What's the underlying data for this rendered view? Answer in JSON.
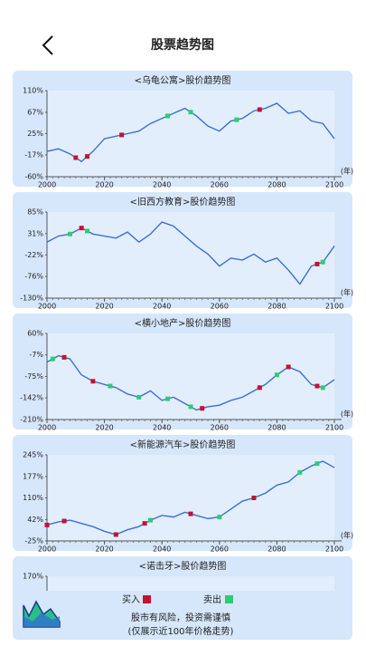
{
  "header": {
    "title": "股票趋势图"
  },
  "chart_data": [
    {
      "type": "line",
      "title": "<乌龟公寓>股价趋势图",
      "xlabel": "(年)",
      "x": [
        2000,
        2004,
        2008,
        2012,
        2016,
        2020,
        2024,
        2028,
        2032,
        2036,
        2040,
        2044,
        2048,
        2052,
        2056,
        2060,
        2064,
        2068,
        2072,
        2076,
        2080,
        2084,
        2088,
        2092,
        2096,
        2100
      ],
      "values": [
        -10,
        -5,
        -15,
        -30,
        -10,
        15,
        20,
        25,
        30,
        45,
        55,
        65,
        75,
        60,
        40,
        30,
        50,
        55,
        70,
        75,
        85,
        65,
        70,
        50,
        45,
        15
      ],
      "xlim": [
        2000,
        2100
      ],
      "xticks": [
        2000,
        2020,
        2040,
        2060,
        2080,
        2100
      ],
      "ylim": [
        -60,
        110
      ],
      "yticks": [
        {
          "value": 110,
          "label": "110%"
        },
        {
          "value": 67,
          "label": "67%"
        },
        {
          "value": 25,
          "label": "25%"
        },
        {
          "value": -17,
          "label": "-17%"
        },
        {
          "value": -60,
          "label": "-60%"
        }
      ],
      "buys": [
        2010,
        2014,
        2026,
        2074
      ],
      "sells": [
        2042,
        2050,
        2066
      ]
    },
    {
      "type": "line",
      "title": "<旧西方教育>股价趋势图",
      "xlabel": "(年)",
      "x": [
        2000,
        2004,
        2008,
        2012,
        2016,
        2020,
        2024,
        2028,
        2032,
        2036,
        2040,
        2044,
        2048,
        2052,
        2056,
        2060,
        2064,
        2068,
        2072,
        2076,
        2080,
        2084,
        2088,
        2092,
        2096,
        2100
      ],
      "values": [
        10,
        25,
        30,
        45,
        30,
        25,
        20,
        35,
        10,
        30,
        60,
        50,
        25,
        0,
        -20,
        -50,
        -30,
        -35,
        -20,
        -40,
        -30,
        -60,
        -95,
        -50,
        -40,
        0
      ],
      "xlim": [
        2000,
        2100
      ],
      "xticks": [
        2000,
        2020,
        2040,
        2060,
        2080,
        2100
      ],
      "ylim": [
        -130,
        85
      ],
      "yticks": [
        {
          "value": 85,
          "label": "85%"
        },
        {
          "value": 31,
          "label": "31%"
        },
        {
          "value": -22,
          "label": "-22%"
        },
        {
          "value": -76,
          "label": "-76%"
        },
        {
          "value": -130,
          "label": "-130%"
        }
      ],
      "buys": [
        2012,
        2094
      ],
      "sells": [
        2008,
        2014,
        2096
      ]
    },
    {
      "type": "line",
      "title": "<横小地产>股价趋势图",
      "xlabel": "(年)",
      "x": [
        2000,
        2004,
        2008,
        2012,
        2016,
        2020,
        2024,
        2028,
        2032,
        2036,
        2040,
        2044,
        2048,
        2052,
        2056,
        2060,
        2064,
        2068,
        2072,
        2076,
        2080,
        2084,
        2088,
        2092,
        2096,
        2100
      ],
      "values": [
        -30,
        -10,
        -20,
        -70,
        -90,
        -100,
        -110,
        -130,
        -140,
        -120,
        -150,
        -140,
        -160,
        -180,
        -170,
        -165,
        -150,
        -140,
        -120,
        -100,
        -70,
        -45,
        -60,
        -100,
        -110,
        -85
      ],
      "xlim": [
        2000,
        2100
      ],
      "xticks": [
        2000,
        2020,
        2040,
        2060,
        2080,
        2100
      ],
      "ylim": [
        -210,
        60
      ],
      "yticks": [
        {
          "value": 60,
          "label": "60%"
        },
        {
          "value": -7,
          "label": "-7%"
        },
        {
          "value": -75,
          "label": "-75%"
        },
        {
          "value": -142,
          "label": "-142%"
        },
        {
          "value": -210,
          "label": "-210%"
        }
      ],
      "buys": [
        2006,
        2016,
        2054,
        2074,
        2084,
        2094
      ],
      "sells": [
        2002,
        2022,
        2032,
        2042,
        2050,
        2080,
        2096
      ]
    },
    {
      "type": "line",
      "title": "<新能源汽车>股价趋势图",
      "xlabel": "(年)",
      "x": [
        2000,
        2004,
        2008,
        2012,
        2016,
        2020,
        2024,
        2028,
        2032,
        2036,
        2040,
        2044,
        2048,
        2052,
        2056,
        2060,
        2064,
        2068,
        2072,
        2076,
        2080,
        2084,
        2088,
        2092,
        2096,
        2100
      ],
      "values": [
        25,
        35,
        40,
        30,
        20,
        5,
        -5,
        10,
        20,
        40,
        55,
        50,
        65,
        55,
        45,
        50,
        75,
        100,
        110,
        125,
        150,
        160,
        190,
        210,
        225,
        205
      ],
      "xlim": [
        2000,
        2100
      ],
      "xticks": [
        2000,
        2020,
        2040,
        2060,
        2080,
        2100
      ],
      "ylim": [
        -25,
        245
      ],
      "yticks": [
        {
          "value": 245,
          "label": "245%"
        },
        {
          "value": 177,
          "label": "177%"
        },
        {
          "value": 110,
          "label": "110%"
        },
        {
          "value": 42,
          "label": "42%"
        },
        {
          "value": -25,
          "label": "-25%"
        }
      ],
      "buys": [
        2000,
        2006,
        2024,
        2034,
        2050,
        2072
      ],
      "sells": [
        2036,
        2060,
        2088,
        2094
      ]
    },
    {
      "type": "line",
      "title": "<诺击牙>股价趋势图",
      "yticks": [
        {
          "value": 170,
          "label": "170%"
        }
      ]
    }
  ],
  "legend": {
    "buy": "买入",
    "sell": "卖出"
  },
  "footer": {
    "line1": "股市有风险，投资需谨慎",
    "line2": "(仅展示近100年价格走势)"
  }
}
